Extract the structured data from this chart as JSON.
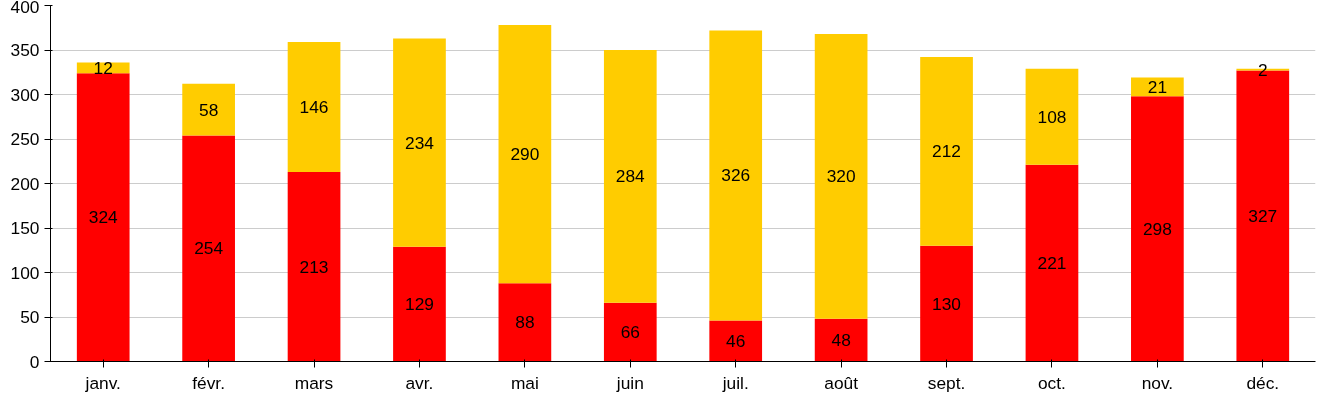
{
  "chart_data": {
    "type": "bar",
    "stacked": true,
    "data_labels": true,
    "grid": "y",
    "ylim": [
      0,
      400
    ],
    "yticks": [
      0,
      50,
      100,
      150,
      200,
      250,
      300,
      350,
      400
    ],
    "categories": [
      "janv.",
      "févr.",
      "mars",
      "avr.",
      "mai",
      "juin",
      "juil.",
      "août",
      "sept.",
      "oct.",
      "nov.",
      "déc."
    ],
    "series": [
      {
        "color": "#ff0000",
        "values": [
          324,
          254,
          213,
          129,
          88,
          66,
          46,
          48,
          130,
          221,
          298,
          327
        ]
      },
      {
        "color": "#ffcc00",
        "values": [
          12,
          58,
          146,
          234,
          290,
          284,
          326,
          320,
          212,
          108,
          21,
          2
        ]
      }
    ]
  }
}
